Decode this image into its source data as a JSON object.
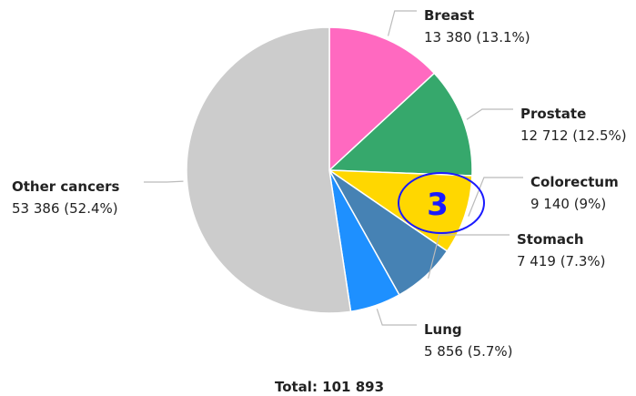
{
  "chart_data": {
    "type": "pie",
    "categories": [
      "Breast",
      "Prostate",
      "Colorectum",
      "Stomach",
      "Lung",
      "Other cancers"
    ],
    "values": [
      13380,
      12712,
      9140,
      7419,
      5856,
      53386
    ],
    "value_labels": [
      "13 380 (13.1%)",
      "12 712 (12.5%)",
      "9 140 (9%)",
      "7 419 (7.3%)",
      "5 856 (5.7%)",
      "53 386 (52.4%)"
    ],
    "colors": [
      "#ff69c0",
      "#36a86c",
      "#ffd700",
      "#4682b4",
      "#1e90ff",
      "#cccccc"
    ],
    "total_label": "Total: 101 893",
    "annotation": "3"
  }
}
